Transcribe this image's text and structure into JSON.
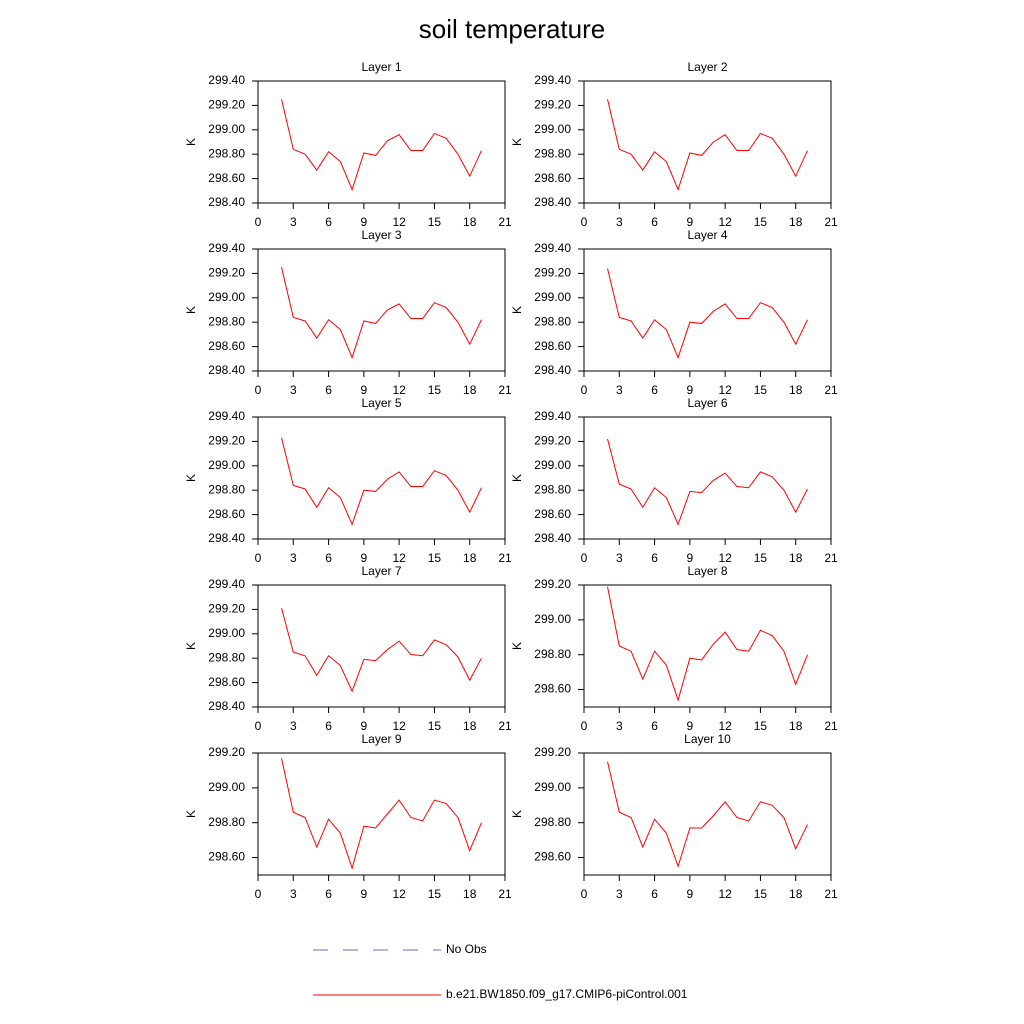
{
  "title": "soil temperature",
  "legend": [
    {
      "name": "No Obs",
      "color": "#6b6bd6",
      "dash": true
    },
    {
      "name": "b.e21.BW1850.f09_g17.CMIP6-piControl.001",
      "color": "#ff0000",
      "dash": false
    }
  ],
  "chart_data": [
    {
      "type": "line",
      "title": "Layer 1",
      "ylabel": "K",
      "x": [
        2,
        3,
        4,
        5,
        6,
        7,
        8,
        9,
        10,
        11,
        12,
        13,
        14,
        15,
        16,
        17,
        18,
        19
      ],
      "xlim": [
        0,
        21
      ],
      "xticks": [
        0,
        3,
        6,
        9,
        12,
        15,
        18,
        21
      ],
      "ylim": [
        298.4,
        299.4
      ],
      "yticks": [
        {
          "value": 298.4,
          "label": "298.40"
        },
        {
          "value": 298.6,
          "label": "298.60"
        },
        {
          "value": 298.8,
          "label": "298.80"
        },
        {
          "value": 299.0,
          "label": "299.00"
        },
        {
          "value": 299.2,
          "label": "299.20"
        },
        {
          "value": 299.4,
          "label": "299.40"
        }
      ],
      "series": [
        {
          "color": "#ff0000",
          "values": [
            299.25,
            298.84,
            298.8,
            298.67,
            298.82,
            298.74,
            298.51,
            298.81,
            298.79,
            298.91,
            298.96,
            298.83,
            298.83,
            298.97,
            298.93,
            298.8,
            298.62,
            298.83
          ]
        }
      ]
    },
    {
      "type": "line",
      "title": "Layer 2",
      "ylabel": "K",
      "x": [
        2,
        3,
        4,
        5,
        6,
        7,
        8,
        9,
        10,
        11,
        12,
        13,
        14,
        15,
        16,
        17,
        18,
        19
      ],
      "xlim": [
        0,
        21
      ],
      "xticks": [
        0,
        3,
        6,
        9,
        12,
        15,
        18,
        21
      ],
      "ylim": [
        298.4,
        299.4
      ],
      "yticks": [
        {
          "value": 298.4,
          "label": "298.40"
        },
        {
          "value": 298.6,
          "label": "298.60"
        },
        {
          "value": 298.8,
          "label": "298.80"
        },
        {
          "value": 299.0,
          "label": "299.00"
        },
        {
          "value": 299.2,
          "label": "299.20"
        },
        {
          "value": 299.4,
          "label": "299.40"
        }
      ],
      "series": [
        {
          "color": "#ff0000",
          "values": [
            299.25,
            298.84,
            298.8,
            298.67,
            298.82,
            298.74,
            298.51,
            298.81,
            298.79,
            298.9,
            298.96,
            298.83,
            298.83,
            298.97,
            298.93,
            298.8,
            298.62,
            298.83
          ]
        }
      ]
    },
    {
      "type": "line",
      "title": "Layer 3",
      "ylabel": "K",
      "x": [
        2,
        3,
        4,
        5,
        6,
        7,
        8,
        9,
        10,
        11,
        12,
        13,
        14,
        15,
        16,
        17,
        18,
        19
      ],
      "xlim": [
        0,
        21
      ],
      "xticks": [
        0,
        3,
        6,
        9,
        12,
        15,
        18,
        21
      ],
      "ylim": [
        298.4,
        299.4
      ],
      "yticks": [
        {
          "value": 298.4,
          "label": "298.40"
        },
        {
          "value": 298.6,
          "label": "298.60"
        },
        {
          "value": 298.8,
          "label": "298.80"
        },
        {
          "value": 299.0,
          "label": "299.00"
        },
        {
          "value": 299.2,
          "label": "299.20"
        },
        {
          "value": 299.4,
          "label": "299.40"
        }
      ],
      "series": [
        {
          "color": "#ff0000",
          "values": [
            299.25,
            298.84,
            298.81,
            298.67,
            298.82,
            298.74,
            298.51,
            298.81,
            298.79,
            298.9,
            298.95,
            298.83,
            298.83,
            298.96,
            298.92,
            298.8,
            298.62,
            298.82
          ]
        }
      ]
    },
    {
      "type": "line",
      "title": "Layer 4",
      "ylabel": "K",
      "x": [
        2,
        3,
        4,
        5,
        6,
        7,
        8,
        9,
        10,
        11,
        12,
        13,
        14,
        15,
        16,
        17,
        18,
        19
      ],
      "xlim": [
        0,
        21
      ],
      "xticks": [
        0,
        3,
        6,
        9,
        12,
        15,
        18,
        21
      ],
      "ylim": [
        298.4,
        299.4
      ],
      "yticks": [
        {
          "value": 298.4,
          "label": "298.40"
        },
        {
          "value": 298.6,
          "label": "298.60"
        },
        {
          "value": 298.8,
          "label": "298.80"
        },
        {
          "value": 299.0,
          "label": "299.00"
        },
        {
          "value": 299.2,
          "label": "299.20"
        },
        {
          "value": 299.4,
          "label": "299.40"
        }
      ],
      "series": [
        {
          "color": "#ff0000",
          "values": [
            299.24,
            298.84,
            298.81,
            298.67,
            298.82,
            298.74,
            298.51,
            298.8,
            298.79,
            298.89,
            298.95,
            298.83,
            298.83,
            298.96,
            298.92,
            298.8,
            298.62,
            298.82
          ]
        }
      ]
    },
    {
      "type": "line",
      "title": "Layer 5",
      "ylabel": "K",
      "x": [
        2,
        3,
        4,
        5,
        6,
        7,
        8,
        9,
        10,
        11,
        12,
        13,
        14,
        15,
        16,
        17,
        18,
        19
      ],
      "xlim": [
        0,
        21
      ],
      "xticks": [
        0,
        3,
        6,
        9,
        12,
        15,
        18,
        21
      ],
      "ylim": [
        298.4,
        299.4
      ],
      "yticks": [
        {
          "value": 298.4,
          "label": "298.40"
        },
        {
          "value": 298.6,
          "label": "298.60"
        },
        {
          "value": 298.8,
          "label": "298.80"
        },
        {
          "value": 299.0,
          "label": "299.00"
        },
        {
          "value": 299.2,
          "label": "299.20"
        },
        {
          "value": 299.4,
          "label": "299.40"
        }
      ],
      "series": [
        {
          "color": "#ff0000",
          "values": [
            299.23,
            298.84,
            298.81,
            298.66,
            298.82,
            298.74,
            298.52,
            298.8,
            298.79,
            298.89,
            298.95,
            298.83,
            298.83,
            298.96,
            298.92,
            298.8,
            298.62,
            298.82
          ]
        }
      ]
    },
    {
      "type": "line",
      "title": "Layer 6",
      "ylabel": "K",
      "x": [
        2,
        3,
        4,
        5,
        6,
        7,
        8,
        9,
        10,
        11,
        12,
        13,
        14,
        15,
        16,
        17,
        18,
        19
      ],
      "xlim": [
        0,
        21
      ],
      "xticks": [
        0,
        3,
        6,
        9,
        12,
        15,
        18,
        21
      ],
      "ylim": [
        298.4,
        299.4
      ],
      "yticks": [
        {
          "value": 298.4,
          "label": "298.40"
        },
        {
          "value": 298.6,
          "label": "298.60"
        },
        {
          "value": 298.8,
          "label": "298.80"
        },
        {
          "value": 299.0,
          "label": "299.00"
        },
        {
          "value": 299.2,
          "label": "299.20"
        },
        {
          "value": 299.4,
          "label": "299.40"
        }
      ],
      "series": [
        {
          "color": "#ff0000",
          "values": [
            299.22,
            298.85,
            298.81,
            298.66,
            298.82,
            298.74,
            298.52,
            298.79,
            298.78,
            298.88,
            298.94,
            298.83,
            298.82,
            298.95,
            298.91,
            298.8,
            298.62,
            298.81
          ]
        }
      ]
    },
    {
      "type": "line",
      "title": "Layer 7",
      "ylabel": "K",
      "x": [
        2,
        3,
        4,
        5,
        6,
        7,
        8,
        9,
        10,
        11,
        12,
        13,
        14,
        15,
        16,
        17,
        18,
        19
      ],
      "xlim": [
        0,
        21
      ],
      "xticks": [
        0,
        3,
        6,
        9,
        12,
        15,
        18,
        21
      ],
      "ylim": [
        298.4,
        299.4
      ],
      "yticks": [
        {
          "value": 298.4,
          "label": "298.40"
        },
        {
          "value": 298.6,
          "label": "298.60"
        },
        {
          "value": 298.8,
          "label": "298.80"
        },
        {
          "value": 299.0,
          "label": "299.00"
        },
        {
          "value": 299.2,
          "label": "299.20"
        },
        {
          "value": 299.4,
          "label": "299.40"
        }
      ],
      "series": [
        {
          "color": "#ff0000",
          "values": [
            299.21,
            298.85,
            298.82,
            298.66,
            298.82,
            298.74,
            298.53,
            298.79,
            298.78,
            298.87,
            298.94,
            298.83,
            298.82,
            298.95,
            298.91,
            298.81,
            298.62,
            298.8
          ]
        }
      ]
    },
    {
      "type": "line",
      "title": "Layer 8",
      "ylabel": "K",
      "x": [
        2,
        3,
        4,
        5,
        6,
        7,
        8,
        9,
        10,
        11,
        12,
        13,
        14,
        15,
        16,
        17,
        18,
        19
      ],
      "xlim": [
        0,
        21
      ],
      "xticks": [
        0,
        3,
        6,
        9,
        12,
        15,
        18,
        21
      ],
      "ylim": [
        298.5,
        299.2
      ],
      "yticks": [
        {
          "value": 298.6,
          "label": "298.60"
        },
        {
          "value": 298.8,
          "label": "298.80"
        },
        {
          "value": 299.0,
          "label": "299.00"
        },
        {
          "value": 299.2,
          "label": "299.20"
        }
      ],
      "series": [
        {
          "color": "#ff0000",
          "values": [
            299.19,
            298.85,
            298.82,
            298.66,
            298.82,
            298.74,
            298.54,
            298.78,
            298.77,
            298.86,
            298.93,
            298.83,
            298.82,
            298.94,
            298.91,
            298.82,
            298.63,
            298.8
          ]
        }
      ]
    },
    {
      "type": "line",
      "title": "Layer 9",
      "ylabel": "K",
      "x": [
        2,
        3,
        4,
        5,
        6,
        7,
        8,
        9,
        10,
        11,
        12,
        13,
        14,
        15,
        16,
        17,
        18,
        19
      ],
      "xlim": [
        0,
        21
      ],
      "xticks": [
        0,
        3,
        6,
        9,
        12,
        15,
        18,
        21
      ],
      "ylim": [
        298.5,
        299.2
      ],
      "yticks": [
        {
          "value": 298.6,
          "label": "298.60"
        },
        {
          "value": 298.8,
          "label": "298.80"
        },
        {
          "value": 299.0,
          "label": "299.00"
        },
        {
          "value": 299.2,
          "label": "299.20"
        }
      ],
      "series": [
        {
          "color": "#ff0000",
          "values": [
            299.17,
            298.86,
            298.83,
            298.66,
            298.82,
            298.74,
            298.54,
            298.78,
            298.77,
            298.85,
            298.93,
            298.83,
            298.81,
            298.93,
            298.91,
            298.83,
            298.64,
            298.8
          ]
        }
      ]
    },
    {
      "type": "line",
      "title": "Layer 10",
      "ylabel": "K",
      "x": [
        2,
        3,
        4,
        5,
        6,
        7,
        8,
        9,
        10,
        11,
        12,
        13,
        14,
        15,
        16,
        17,
        18,
        19
      ],
      "xlim": [
        0,
        21
      ],
      "xticks": [
        0,
        3,
        6,
        9,
        12,
        15,
        18,
        21
      ],
      "ylim": [
        298.5,
        299.2
      ],
      "yticks": [
        {
          "value": 298.6,
          "label": "298.60"
        },
        {
          "value": 298.8,
          "label": "298.80"
        },
        {
          "value": 299.0,
          "label": "299.00"
        },
        {
          "value": 299.2,
          "label": "299.20"
        }
      ],
      "series": [
        {
          "color": "#ff0000",
          "values": [
            299.15,
            298.86,
            298.83,
            298.66,
            298.82,
            298.74,
            298.55,
            298.77,
            298.77,
            298.84,
            298.92,
            298.83,
            298.81,
            298.92,
            298.9,
            298.83,
            298.65,
            298.79
          ]
        }
      ]
    }
  ]
}
